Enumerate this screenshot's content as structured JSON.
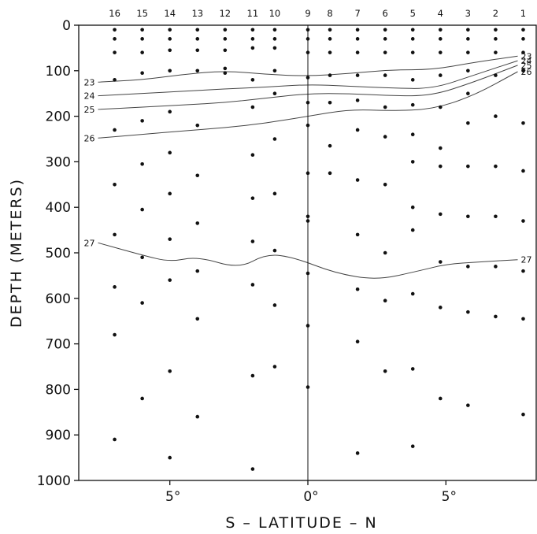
{
  "chart_data": {
    "type": "scatter",
    "title": "",
    "xlabel": "S – LATITUDE – N",
    "ylabel": "DEPTH (METERS)",
    "x_axis": {
      "range": [
        -8.3,
        8.3
      ],
      "ticks": [
        -5,
        0,
        5
      ],
      "tick_labels": [
        "5°",
        "0°",
        "5°"
      ]
    },
    "y_axis": {
      "range": [
        0,
        1000
      ],
      "inverted": true,
      "ticks": [
        0,
        100,
        200,
        300,
        400,
        500,
        600,
        700,
        800,
        900,
        1000
      ],
      "tick_labels": [
        "0",
        "100",
        "200",
        "300",
        "400",
        "500",
        "600",
        "700",
        "800",
        "900",
        "1000"
      ]
    },
    "grid": false,
    "stations": [
      {
        "label": "16",
        "lat": -7.0,
        "depths": [
          10,
          30,
          60,
          120,
          230,
          350,
          460,
          575,
          680,
          910
        ]
      },
      {
        "label": "15",
        "lat": -6.0,
        "depths": [
          10,
          30,
          60,
          105,
          210,
          305,
          405,
          510,
          610,
          820
        ]
      },
      {
        "label": "14",
        "lat": -5.0,
        "depths": [
          10,
          30,
          55,
          100,
          190,
          280,
          370,
          470,
          560,
          760,
          950
        ]
      },
      {
        "label": "13",
        "lat": -4.0,
        "depths": [
          10,
          30,
          55,
          100,
          220,
          330,
          435,
          540,
          645,
          860
        ]
      },
      {
        "label": "12",
        "lat": -3.0,
        "depths": [
          10,
          30,
          55,
          95,
          105
        ]
      },
      {
        "label": "11",
        "lat": -2.0,
        "depths": [
          10,
          30,
          50,
          120,
          180,
          285,
          380,
          475,
          570,
          770,
          975
        ]
      },
      {
        "label": "10",
        "lat": -1.2,
        "depths": [
          10,
          30,
          50,
          100,
          150,
          250,
          370,
          495,
          615,
          750
        ]
      },
      {
        "label": "9",
        "lat": 0.0,
        "depths": [
          10,
          30,
          60,
          115,
          170,
          220,
          325,
          420,
          430,
          545,
          660,
          795
        ]
      },
      {
        "label": "8",
        "lat": 0.8,
        "depths": [
          10,
          30,
          60,
          110,
          170,
          265,
          325
        ]
      },
      {
        "label": "7",
        "lat": 1.8,
        "depths": [
          10,
          30,
          60,
          110,
          165,
          230,
          340,
          460,
          580,
          695,
          940
        ]
      },
      {
        "label": "6",
        "lat": 2.8,
        "depths": [
          10,
          30,
          60,
          110,
          180,
          245,
          350,
          500,
          605,
          760
        ]
      },
      {
        "label": "5",
        "lat": 3.8,
        "depths": [
          10,
          30,
          60,
          120,
          175,
          240,
          300,
          400,
          450,
          590,
          755,
          925
        ]
      },
      {
        "label": "4",
        "lat": 4.8,
        "depths": [
          10,
          30,
          60,
          110,
          180,
          270,
          310,
          415,
          520,
          620,
          820
        ]
      },
      {
        "label": "3",
        "lat": 5.8,
        "depths": [
          10,
          30,
          60,
          100,
          150,
          215,
          310,
          420,
          530,
          630,
          835
        ]
      },
      {
        "label": "2",
        "lat": 6.8,
        "depths": [
          10,
          30,
          60,
          110,
          200,
          310,
          420,
          530,
          640
        ]
      },
      {
        "label": "1",
        "lat": 7.8,
        "depths": [
          10,
          30,
          60,
          100,
          215,
          320,
          430,
          540,
          645,
          855
        ]
      }
    ],
    "contours": [
      {
        "label": "23",
        "points": [
          [
            -7.6,
            125
          ],
          [
            -6,
            120
          ],
          [
            -4.5,
            108
          ],
          [
            -3,
            100
          ],
          [
            -1.5,
            108
          ],
          [
            0,
            112
          ],
          [
            1.5,
            106
          ],
          [
            3,
            98
          ],
          [
            4.5,
            98
          ],
          [
            6,
            82
          ],
          [
            7.6,
            68
          ]
        ]
      },
      {
        "label": "24",
        "points": [
          [
            -7.6,
            155
          ],
          [
            -6,
            150
          ],
          [
            -4.5,
            145
          ],
          [
            -3,
            140
          ],
          [
            -1.5,
            136
          ],
          [
            0,
            130
          ],
          [
            1.5,
            134
          ],
          [
            3,
            138
          ],
          [
            4.5,
            140
          ],
          [
            6,
            110
          ],
          [
            7.6,
            78
          ]
        ]
      },
      {
        "label": "25",
        "points": [
          [
            -7.6,
            185
          ],
          [
            -6,
            180
          ],
          [
            -4.5,
            175
          ],
          [
            -3,
            170
          ],
          [
            -1.5,
            160
          ],
          [
            0,
            150
          ],
          [
            1.5,
            150
          ],
          [
            3,
            155
          ],
          [
            4.5,
            155
          ],
          [
            6,
            125
          ],
          [
            7.6,
            88
          ]
        ]
      },
      {
        "label": "26",
        "points": [
          [
            -7.6,
            248
          ],
          [
            -6,
            240
          ],
          [
            -4.5,
            232
          ],
          [
            -3,
            225
          ],
          [
            -1.5,
            215
          ],
          [
            0,
            200
          ],
          [
            1.5,
            185
          ],
          [
            3,
            188
          ],
          [
            4.5,
            185
          ],
          [
            6,
            155
          ],
          [
            7.6,
            102
          ]
        ]
      },
      {
        "label": "27",
        "points": [
          [
            -7.6,
            478
          ],
          [
            -6,
            505
          ],
          [
            -5,
            520
          ],
          [
            -4,
            508
          ],
          [
            -2.5,
            535
          ],
          [
            -1.5,
            502
          ],
          [
            -0.5,
            510
          ],
          [
            1,
            545
          ],
          [
            2.5,
            560
          ],
          [
            4,
            540
          ],
          [
            5,
            525
          ],
          [
            6.2,
            520
          ],
          [
            7.6,
            515
          ]
        ]
      }
    ]
  }
}
